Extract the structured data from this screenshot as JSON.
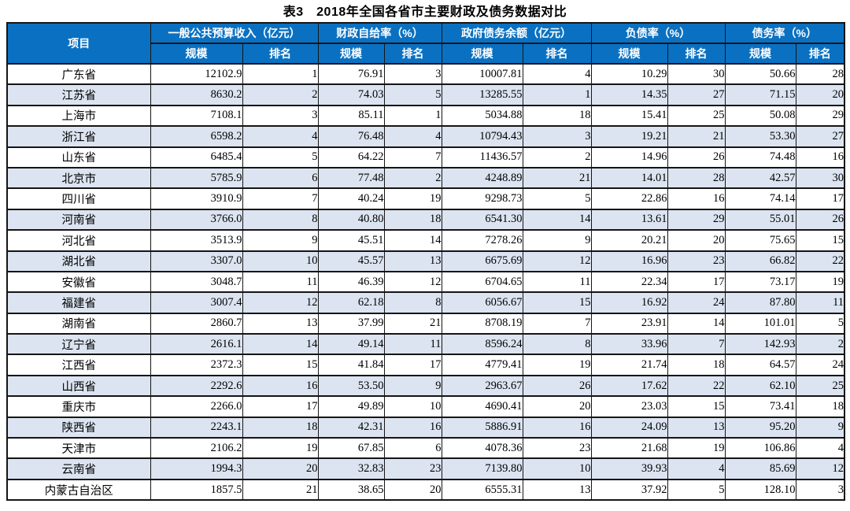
{
  "title": "表3　2018年全国各省市主要财政及债务数据对比",
  "colors": {
    "header_bg": "#0a71c2",
    "header_text": "#ffffff",
    "row_alt_bg": "#dbe4f0",
    "border": "#151515",
    "text": "#000000"
  },
  "table": {
    "item_header": "项目",
    "groups": [
      {
        "label": "一般公共预算收入（亿元）"
      },
      {
        "label": "财政自给率（%）"
      },
      {
        "label": "政府债务余额（亿元）"
      },
      {
        "label": "负债率（%）"
      },
      {
        "label": "债务率（%）"
      }
    ],
    "sub_headers": [
      "规模",
      "排名"
    ],
    "rows": [
      {
        "name": "广东省",
        "values": [
          "12102.9",
          "1",
          "76.91",
          "3",
          "10007.81",
          "4",
          "10.29",
          "30",
          "50.66",
          "28"
        ]
      },
      {
        "name": "江苏省",
        "values": [
          "8630.2",
          "2",
          "74.03",
          "5",
          "13285.55",
          "1",
          "14.35",
          "27",
          "71.15",
          "20"
        ]
      },
      {
        "name": "上海市",
        "values": [
          "7108.1",
          "3",
          "85.11",
          "1",
          "5034.88",
          "18",
          "15.41",
          "25",
          "50.08",
          "29"
        ]
      },
      {
        "name": "浙江省",
        "values": [
          "6598.2",
          "4",
          "76.48",
          "4",
          "10794.43",
          "3",
          "19.21",
          "21",
          "53.30",
          "27"
        ]
      },
      {
        "name": "山东省",
        "values": [
          "6485.4",
          "5",
          "64.22",
          "7",
          "11436.57",
          "2",
          "14.96",
          "26",
          "74.48",
          "16"
        ]
      },
      {
        "name": "北京市",
        "values": [
          "5785.9",
          "6",
          "77.48",
          "2",
          "4248.89",
          "21",
          "14.01",
          "28",
          "42.57",
          "30"
        ]
      },
      {
        "name": "四川省",
        "values": [
          "3910.9",
          "7",
          "40.24",
          "19",
          "9298.73",
          "5",
          "22.86",
          "16",
          "74.14",
          "17"
        ]
      },
      {
        "name": "河南省",
        "values": [
          "3766.0",
          "8",
          "40.80",
          "18",
          "6541.30",
          "14",
          "13.61",
          "29",
          "55.01",
          "26"
        ]
      },
      {
        "name": "河北省",
        "values": [
          "3513.9",
          "9",
          "45.51",
          "14",
          "7278.26",
          "9",
          "20.21",
          "20",
          "75.65",
          "15"
        ]
      },
      {
        "name": "湖北省",
        "values": [
          "3307.0",
          "10",
          "45.57",
          "13",
          "6675.69",
          "12",
          "16.96",
          "23",
          "66.82",
          "22"
        ]
      },
      {
        "name": "安徽省",
        "values": [
          "3048.7",
          "11",
          "46.39",
          "12",
          "6704.65",
          "11",
          "22.34",
          "17",
          "73.17",
          "19"
        ]
      },
      {
        "name": "福建省",
        "values": [
          "3007.4",
          "12",
          "62.18",
          "8",
          "6056.67",
          "15",
          "16.92",
          "24",
          "87.80",
          "11"
        ]
      },
      {
        "name": "湖南省",
        "values": [
          "2860.7",
          "13",
          "37.99",
          "21",
          "8708.19",
          "7",
          "23.91",
          "14",
          "101.01",
          "5"
        ]
      },
      {
        "name": "辽宁省",
        "values": [
          "2616.1",
          "14",
          "49.14",
          "11",
          "8596.24",
          "8",
          "33.96",
          "7",
          "142.93",
          "2"
        ]
      },
      {
        "name": "江西省",
        "values": [
          "2372.3",
          "15",
          "41.84",
          "17",
          "4779.41",
          "19",
          "21.74",
          "18",
          "64.57",
          "24"
        ]
      },
      {
        "name": "山西省",
        "values": [
          "2292.6",
          "16",
          "53.50",
          "9",
          "2963.67",
          "26",
          "17.62",
          "22",
          "62.10",
          "25"
        ]
      },
      {
        "name": "重庆市",
        "values": [
          "2266.0",
          "17",
          "49.89",
          "10",
          "4690.41",
          "20",
          "23.03",
          "15",
          "73.41",
          "18"
        ]
      },
      {
        "name": "陕西省",
        "values": [
          "2243.1",
          "18",
          "42.31",
          "16",
          "5886.91",
          "16",
          "24.09",
          "13",
          "95.20",
          "9"
        ]
      },
      {
        "name": "天津市",
        "values": [
          "2106.2",
          "19",
          "67.85",
          "6",
          "4078.36",
          "23",
          "21.68",
          "19",
          "106.86",
          "4"
        ]
      },
      {
        "name": "云南省",
        "values": [
          "1994.3",
          "20",
          "32.83",
          "23",
          "7139.80",
          "10",
          "39.93",
          "4",
          "85.69",
          "12"
        ]
      },
      {
        "name": "内蒙古自治区",
        "values": [
          "1857.5",
          "21",
          "38.65",
          "20",
          "6555.31",
          "13",
          "37.92",
          "5",
          "128.10",
          "3"
        ]
      }
    ]
  }
}
